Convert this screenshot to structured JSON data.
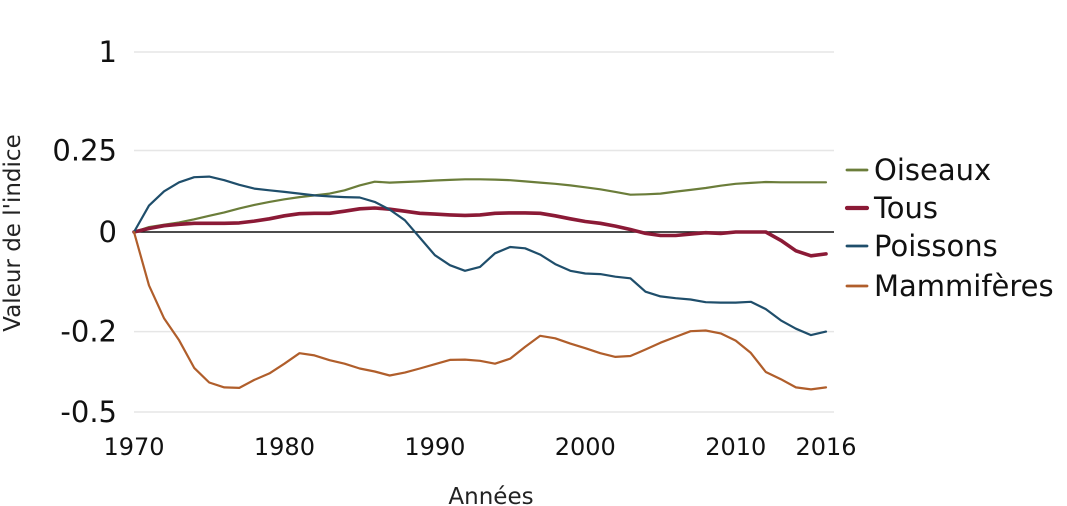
{
  "chart_data": {
    "type": "line",
    "title": "",
    "xlabel": "Années",
    "ylabel": "Valeur de l'indice",
    "xlim": [
      1970,
      2016
    ],
    "ylim": [
      -0.5,
      1
    ],
    "yscale": "symmetric-log",
    "grid": true,
    "legend": "right",
    "y_ticks": [
      {
        "value": 1,
        "label": "1"
      },
      {
        "value": 0.25,
        "label": "0.25"
      },
      {
        "value": 0,
        "label": "0"
      },
      {
        "value": -0.2,
        "label": "-0.2"
      },
      {
        "value": -0.5,
        "label": "-0.5"
      }
    ],
    "x_ticks": [
      {
        "value": 1970,
        "label": "1970"
      },
      {
        "value": 1980,
        "label": "1980"
      },
      {
        "value": 1990,
        "label": "1990"
      },
      {
        "value": 2000,
        "label": "2000"
      },
      {
        "value": 2010,
        "label": "2010"
      },
      {
        "value": 2016,
        "label": "2016"
      }
    ],
    "x": [
      1970,
      1971,
      1972,
      1973,
      1974,
      1975,
      1976,
      1977,
      1978,
      1979,
      1980,
      1981,
      1982,
      1983,
      1984,
      1985,
      1986,
      1987,
      1988,
      1989,
      1990,
      1991,
      1992,
      1993,
      1994,
      1995,
      1996,
      1997,
      1998,
      1999,
      2000,
      2001,
      2002,
      2003,
      2004,
      2005,
      2006,
      2007,
      2008,
      2009,
      2010,
      2011,
      2012,
      2013,
      2014,
      2015,
      2016
    ],
    "series": [
      {
        "name": "Oiseaux",
        "color": "#6b7d3a",
        "width": 2.2,
        "values": [
          0,
          0.01,
          0.015,
          0.02,
          0.027,
          0.035,
          0.043,
          0.053,
          0.062,
          0.07,
          0.077,
          0.083,
          0.088,
          0.093,
          0.103,
          0.118,
          0.13,
          0.127,
          0.129,
          0.131,
          0.134,
          0.136,
          0.138,
          0.138,
          0.137,
          0.135,
          0.131,
          0.127,
          0.123,
          0.118,
          0.112,
          0.106,
          0.098,
          0.09,
          0.091,
          0.093,
          0.099,
          0.104,
          0.11,
          0.117,
          0.123,
          0.126,
          0.129,
          0.128,
          0.128,
          0.128,
          0.128
        ]
      },
      {
        "name": "Tous",
        "color": "#8b1a36",
        "width": 3.6,
        "values": [
          0,
          0.007,
          0.013,
          0.016,
          0.018,
          0.018,
          0.018,
          0.019,
          0.023,
          0.028,
          0.035,
          0.04,
          0.041,
          0.041,
          0.046,
          0.052,
          0.054,
          0.051,
          0.046,
          0.041,
          0.039,
          0.037,
          0.036,
          0.037,
          0.041,
          0.042,
          0.042,
          0.041,
          0.035,
          0.028,
          0.022,
          0.018,
          0.012,
          0.005,
          -0.002,
          -0.005,
          -0.005,
          -0.003,
          -0.001,
          -0.002,
          0,
          0,
          0,
          -0.012,
          -0.028,
          -0.036,
          -0.033
        ]
      },
      {
        "name": "Poissons",
        "color": "#1f4e6b",
        "width": 2.2,
        "values": [
          0,
          0.06,
          0.1,
          0.128,
          0.145,
          0.147,
          0.135,
          0.12,
          0.108,
          0.103,
          0.098,
          0.093,
          0.088,
          0.085,
          0.083,
          0.082,
          0.07,
          0.05,
          0.025,
          -0.008,
          -0.035,
          -0.052,
          -0.062,
          -0.055,
          -0.032,
          -0.022,
          -0.024,
          -0.034,
          -0.05,
          -0.062,
          -0.067,
          -0.068,
          -0.073,
          -0.076,
          -0.103,
          -0.113,
          -0.117,
          -0.12,
          -0.126,
          -0.127,
          -0.127,
          -0.125,
          -0.142,
          -0.17,
          -0.192,
          -0.21,
          -0.2
        ]
      },
      {
        "name": "Mammifères",
        "color": "#b05e2b",
        "width": 2.2,
        "values": [
          0,
          -0.09,
          -0.165,
          -0.225,
          -0.315,
          -0.37,
          -0.39,
          -0.392,
          -0.36,
          -0.335,
          -0.3,
          -0.265,
          -0.272,
          -0.288,
          -0.3,
          -0.317,
          -0.328,
          -0.343,
          -0.332,
          -0.317,
          -0.302,
          -0.287,
          -0.286,
          -0.29,
          -0.3,
          -0.283,
          -0.245,
          -0.212,
          -0.219,
          -0.235,
          -0.249,
          -0.265,
          -0.277,
          -0.274,
          -0.253,
          -0.232,
          -0.215,
          -0.199,
          -0.197,
          -0.205,
          -0.226,
          -0.264,
          -0.33,
          -0.357,
          -0.39,
          -0.398,
          -0.39
        ]
      }
    ]
  }
}
